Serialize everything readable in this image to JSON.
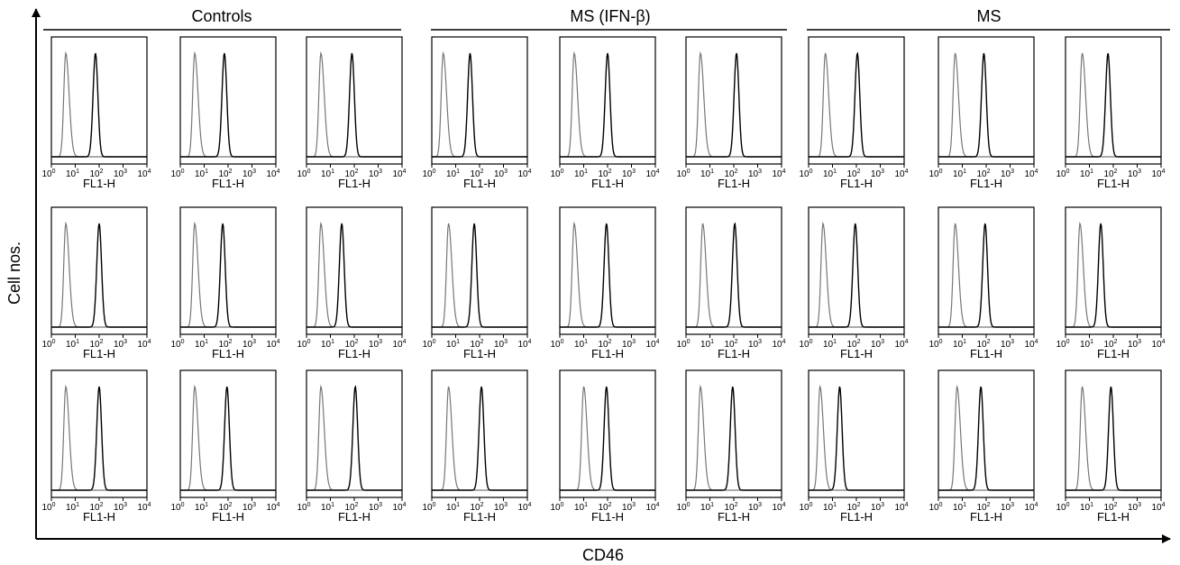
{
  "figure": {
    "y_axis_title": "Cell nos.",
    "x_axis_title": "CD46",
    "groups": [
      "Controls",
      "MS (IFN-β)",
      "MS"
    ],
    "panel_xlabel": "FL1-H",
    "tick_base": "10",
    "tick_exponents": [
      "0",
      "1",
      "2",
      "3",
      "4"
    ]
  },
  "chart_data": {
    "type": "histogram-grid",
    "x_scale": "log",
    "xlim": [
      1,
      10000
    ],
    "xlabel": "FL1-H",
    "xticks": [
      "10^0",
      "10^1",
      "10^2",
      "10^3",
      "10^4"
    ],
    "grid": false,
    "outer_xlabel": "CD46",
    "outer_ylabel": "Cell nos.",
    "columns": [
      "Controls",
      "Controls",
      "Controls",
      "MS (IFN-β)",
      "MS (IFN-β)",
      "MS (IFN-β)",
      "MS",
      "MS",
      "MS"
    ],
    "rows": 3,
    "colors": {
      "isotype": "#777777",
      "cd46": "#000000",
      "frame": "#000000"
    },
    "panels": [
      {
        "group": "Controls",
        "row": 1,
        "col": 1,
        "isotype_peak": 4,
        "cd46_peak": 70
      },
      {
        "group": "Controls",
        "row": 1,
        "col": 2,
        "isotype_peak": 4,
        "cd46_peak": 70
      },
      {
        "group": "Controls",
        "row": 1,
        "col": 3,
        "isotype_peak": 4,
        "cd46_peak": 80
      },
      {
        "group": "MS (IFN-β)",
        "row": 1,
        "col": 4,
        "isotype_peak": 3,
        "cd46_peak": 40
      },
      {
        "group": "MS (IFN-β)",
        "row": 1,
        "col": 5,
        "isotype_peak": 4,
        "cd46_peak": 100
      },
      {
        "group": "MS (IFN-β)",
        "row": 1,
        "col": 6,
        "isotype_peak": 4,
        "cd46_peak": 130
      },
      {
        "group": "MS",
        "row": 1,
        "col": 7,
        "isotype_peak": 5,
        "cd46_peak": 110
      },
      {
        "group": "MS",
        "row": 1,
        "col": 8,
        "isotype_peak": 5,
        "cd46_peak": 80
      },
      {
        "group": "MS",
        "row": 1,
        "col": 9,
        "isotype_peak": 5,
        "cd46_peak": 60
      },
      {
        "group": "Controls",
        "row": 2,
        "col": 1,
        "isotype_peak": 4,
        "cd46_peak": 100
      },
      {
        "group": "Controls",
        "row": 2,
        "col": 2,
        "isotype_peak": 4,
        "cd46_peak": 60
      },
      {
        "group": "Controls",
        "row": 2,
        "col": 3,
        "isotype_peak": 4,
        "cd46_peak": 30
      },
      {
        "group": "MS (IFN-β)",
        "row": 2,
        "col": 4,
        "isotype_peak": 5,
        "cd46_peak": 60
      },
      {
        "group": "MS (IFN-β)",
        "row": 2,
        "col": 5,
        "isotype_peak": 4,
        "cd46_peak": 90
      },
      {
        "group": "MS (IFN-β)",
        "row": 2,
        "col": 6,
        "isotype_peak": 5,
        "cd46_peak": 110
      },
      {
        "group": "MS",
        "row": 2,
        "col": 7,
        "isotype_peak": 4,
        "cd46_peak": 90
      },
      {
        "group": "MS",
        "row": 2,
        "col": 8,
        "isotype_peak": 5,
        "cd46_peak": 90
      },
      {
        "group": "MS",
        "row": 2,
        "col": 9,
        "isotype_peak": 4,
        "cd46_peak": 30
      },
      {
        "group": "Controls",
        "row": 3,
        "col": 1,
        "isotype_peak": 4,
        "cd46_peak": 100
      },
      {
        "group": "Controls",
        "row": 3,
        "col": 2,
        "isotype_peak": 4,
        "cd46_peak": 90
      },
      {
        "group": "Controls",
        "row": 3,
        "col": 3,
        "isotype_peak": 4,
        "cd46_peak": 110
      },
      {
        "group": "MS (IFN-β)",
        "row": 3,
        "col": 4,
        "isotype_peak": 5,
        "cd46_peak": 120
      },
      {
        "group": "MS (IFN-β)",
        "row": 3,
        "col": 5,
        "isotype_peak": 10,
        "cd46_peak": 90
      },
      {
        "group": "MS (IFN-β)",
        "row": 3,
        "col": 6,
        "isotype_peak": 4,
        "cd46_peak": 90
      },
      {
        "group": "MS",
        "row": 3,
        "col": 7,
        "isotype_peak": 3,
        "cd46_peak": 20
      },
      {
        "group": "MS",
        "row": 3,
        "col": 8,
        "isotype_peak": 6,
        "cd46_peak": 60
      },
      {
        "group": "MS",
        "row": 3,
        "col": 9,
        "isotype_peak": 5,
        "cd46_peak": 80
      }
    ]
  }
}
